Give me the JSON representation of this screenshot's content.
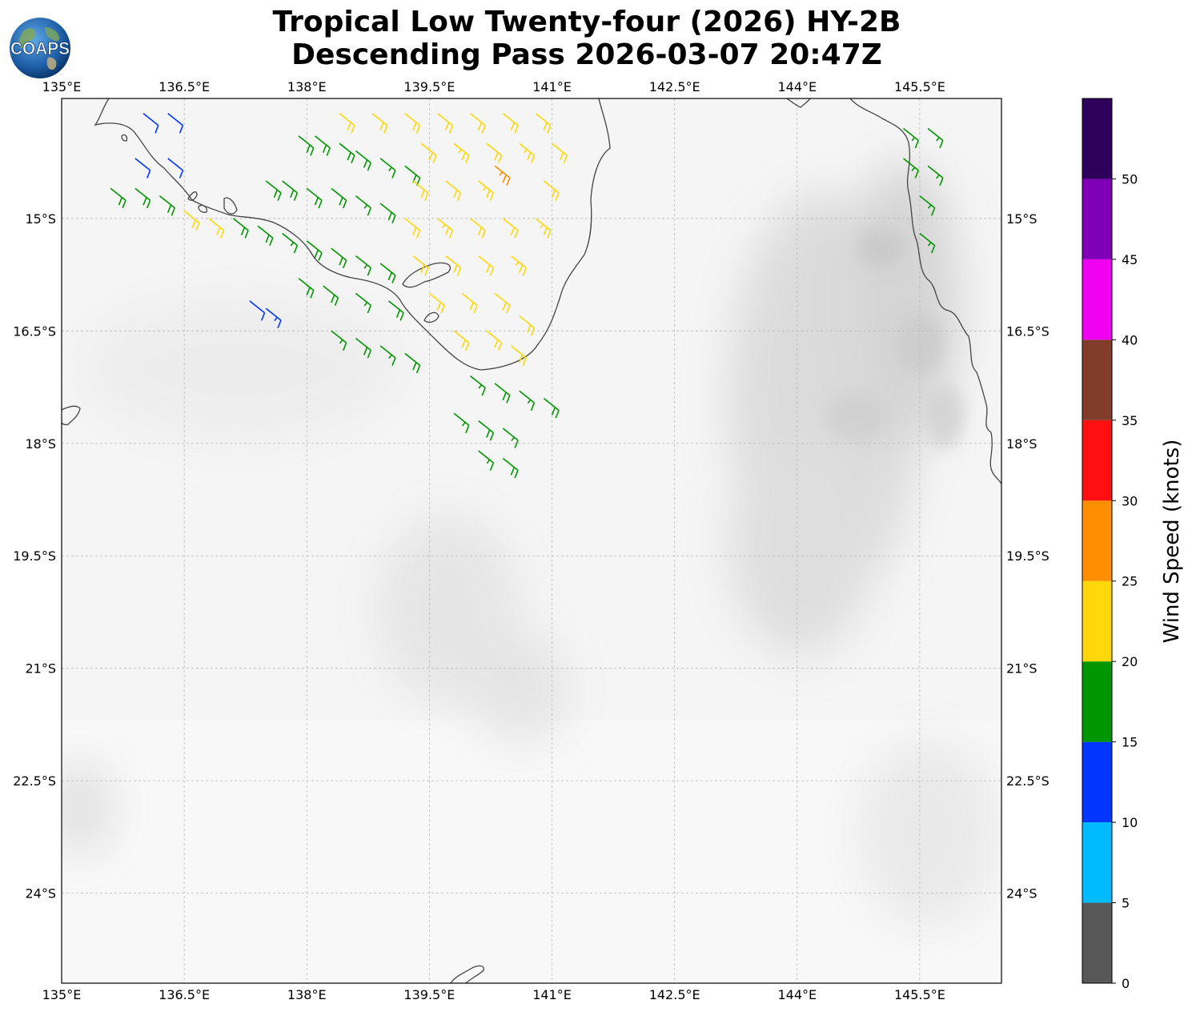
{
  "title": {
    "line1": "Tropical Low Twenty-four (2026) HY-2B",
    "line2": "Descending Pass 2026-03-07 20:47Z"
  },
  "logo": {
    "text": "COAPS",
    "icon": "globe-icon"
  },
  "map": {
    "lon_range": [
      135.0,
      146.5
    ],
    "lat_range": [
      -13.4,
      -25.2
    ],
    "lon_ticks": [
      "135°E",
      "136.5°E",
      "138°E",
      "139.5°E",
      "141°E",
      "142.5°E",
      "144°E",
      "145.5°E"
    ],
    "lat_ticks": [
      "15°S",
      "16.5°S",
      "18°S",
      "19.5°S",
      "21°S",
      "22.5°S",
      "24°S"
    ],
    "background": "grayscale satellite imagery",
    "coastline_color": "#333333",
    "gridlines": "dashed gray"
  },
  "colorbar": {
    "label": "Wind Speed (knots)",
    "ticks": [
      "0",
      "5",
      "10",
      "15",
      "20",
      "25",
      "30",
      "35",
      "40",
      "45",
      "50"
    ],
    "bins": [
      {
        "from": 0,
        "to": 5,
        "color": "#575757"
      },
      {
        "from": 5,
        "to": 10,
        "color": "#00bbff"
      },
      {
        "from": 10,
        "to": 15,
        "color": "#0036ff"
      },
      {
        "from": 15,
        "to": 20,
        "color": "#009600"
      },
      {
        "from": 20,
        "to": 25,
        "color": "#ffd70a"
      },
      {
        "from": 25,
        "to": 30,
        "color": "#ff8e00"
      },
      {
        "from": 30,
        "to": 35,
        "color": "#ff0f0f"
      },
      {
        "from": 35,
        "to": 40,
        "color": "#823d2a"
      },
      {
        "from": 40,
        "to": 45,
        "color": "#f000f0"
      },
      {
        "from": 45,
        "to": 50,
        "color": "#8000b8"
      },
      {
        "from": 50,
        "to": 55,
        "color": "#2e005c"
      }
    ]
  },
  "wind_barbs": [
    {
      "lon": 136.0,
      "lat": -13.6,
      "kt": 12
    },
    {
      "lon": 136.3,
      "lat": -13.6,
      "kt": 12
    },
    {
      "lon": 135.9,
      "lat": -14.2,
      "kt": 12
    },
    {
      "lon": 136.3,
      "lat": -14.2,
      "kt": 12
    },
    {
      "lon": 137.3,
      "lat": -16.1,
      "kt": 12
    },
    {
      "lon": 137.5,
      "lat": -16.2,
      "kt": 13
    },
    {
      "lon": 137.9,
      "lat": -13.9,
      "kt": 18
    },
    {
      "lon": 138.1,
      "lat": -13.9,
      "kt": 18
    },
    {
      "lon": 138.4,
      "lat": -14.0,
      "kt": 19
    },
    {
      "lon": 138.6,
      "lat": -14.1,
      "kt": 18
    },
    {
      "lon": 138.9,
      "lat": -14.2,
      "kt": 17
    },
    {
      "lon": 139.2,
      "lat": -14.3,
      "kt": 18
    },
    {
      "lon": 137.5,
      "lat": -14.5,
      "kt": 18
    },
    {
      "lon": 137.7,
      "lat": -14.5,
      "kt": 18
    },
    {
      "lon": 138.0,
      "lat": -14.6,
      "kt": 19
    },
    {
      "lon": 138.3,
      "lat": -14.6,
      "kt": 18
    },
    {
      "lon": 138.6,
      "lat": -14.7,
      "kt": 17
    },
    {
      "lon": 138.9,
      "lat": -14.8,
      "kt": 18
    },
    {
      "lon": 135.6,
      "lat": -14.6,
      "kt": 18
    },
    {
      "lon": 135.9,
      "lat": -14.6,
      "kt": 18
    },
    {
      "lon": 136.2,
      "lat": -14.7,
      "kt": 18
    },
    {
      "lon": 137.1,
      "lat": -15.0,
      "kt": 18
    },
    {
      "lon": 137.4,
      "lat": -15.1,
      "kt": 18
    },
    {
      "lon": 137.7,
      "lat": -15.2,
      "kt": 17
    },
    {
      "lon": 138.0,
      "lat": -15.3,
      "kt": 18
    },
    {
      "lon": 138.3,
      "lat": -15.4,
      "kt": 18
    },
    {
      "lon": 138.6,
      "lat": -15.5,
      "kt": 17
    },
    {
      "lon": 138.9,
      "lat": -15.6,
      "kt": 18
    },
    {
      "lon": 137.9,
      "lat": -15.8,
      "kt": 18
    },
    {
      "lon": 138.2,
      "lat": -15.9,
      "kt": 18
    },
    {
      "lon": 138.6,
      "lat": -16.0,
      "kt": 17
    },
    {
      "lon": 139.0,
      "lat": -16.1,
      "kt": 18
    },
    {
      "lon": 138.3,
      "lat": -16.5,
      "kt": 17
    },
    {
      "lon": 138.6,
      "lat": -16.6,
      "kt": 18
    },
    {
      "lon": 138.9,
      "lat": -16.7,
      "kt": 17
    },
    {
      "lon": 139.2,
      "lat": -16.8,
      "kt": 18
    },
    {
      "lon": 140.0,
      "lat": -17.1,
      "kt": 17
    },
    {
      "lon": 140.3,
      "lat": -17.2,
      "kt": 18
    },
    {
      "lon": 140.6,
      "lat": -17.3,
      "kt": 17
    },
    {
      "lon": 140.9,
      "lat": -17.4,
      "kt": 18
    },
    {
      "lon": 139.8,
      "lat": -17.6,
      "kt": 17
    },
    {
      "lon": 140.1,
      "lat": -17.7,
      "kt": 18
    },
    {
      "lon": 140.4,
      "lat": -17.8,
      "kt": 17
    },
    {
      "lon": 140.1,
      "lat": -18.1,
      "kt": 17
    },
    {
      "lon": 140.4,
      "lat": -18.2,
      "kt": 18
    },
    {
      "lon": 145.3,
      "lat": -13.8,
      "kt": 17
    },
    {
      "lon": 145.6,
      "lat": -13.8,
      "kt": 17
    },
    {
      "lon": 145.3,
      "lat": -14.2,
      "kt": 17
    },
    {
      "lon": 145.6,
      "lat": -14.3,
      "kt": 17
    },
    {
      "lon": 145.5,
      "lat": -14.7,
      "kt": 17
    },
    {
      "lon": 145.5,
      "lat": -15.2,
      "kt": 17
    },
    {
      "lon": 138.4,
      "lat": -13.6,
      "kt": 22
    },
    {
      "lon": 138.8,
      "lat": -13.6,
      "kt": 22
    },
    {
      "lon": 139.2,
      "lat": -13.6,
      "kt": 22
    },
    {
      "lon": 139.6,
      "lat": -13.6,
      "kt": 22
    },
    {
      "lon": 140.0,
      "lat": -13.6,
      "kt": 22
    },
    {
      "lon": 140.4,
      "lat": -13.6,
      "kt": 22
    },
    {
      "lon": 140.8,
      "lat": -13.6,
      "kt": 22
    },
    {
      "lon": 139.4,
      "lat": -14.0,
      "kt": 22
    },
    {
      "lon": 139.8,
      "lat": -14.0,
      "kt": 23
    },
    {
      "lon": 140.2,
      "lat": -14.0,
      "kt": 22
    },
    {
      "lon": 140.6,
      "lat": -14.0,
      "kt": 23
    },
    {
      "lon": 141.0,
      "lat": -14.0,
      "kt": 22
    },
    {
      "lon": 139.3,
      "lat": -14.5,
      "kt": 22
    },
    {
      "lon": 139.7,
      "lat": -14.5,
      "kt": 22
    },
    {
      "lon": 140.1,
      "lat": -14.5,
      "kt": 23
    },
    {
      "lon": 140.9,
      "lat": -14.5,
      "kt": 22
    },
    {
      "lon": 136.5,
      "lat": -14.9,
      "kt": 22
    },
    {
      "lon": 136.8,
      "lat": -15.0,
      "kt": 22
    },
    {
      "lon": 139.2,
      "lat": -15.0,
      "kt": 22
    },
    {
      "lon": 139.6,
      "lat": -15.0,
      "kt": 23
    },
    {
      "lon": 140.0,
      "lat": -15.0,
      "kt": 22
    },
    {
      "lon": 140.4,
      "lat": -15.0,
      "kt": 22
    },
    {
      "lon": 140.8,
      "lat": -15.0,
      "kt": 23
    },
    {
      "lon": 139.3,
      "lat": -15.5,
      "kt": 22
    },
    {
      "lon": 139.7,
      "lat": -15.5,
      "kt": 22
    },
    {
      "lon": 140.1,
      "lat": -15.5,
      "kt": 22
    },
    {
      "lon": 140.5,
      "lat": -15.5,
      "kt": 23
    },
    {
      "lon": 139.5,
      "lat": -16.0,
      "kt": 22
    },
    {
      "lon": 139.9,
      "lat": -16.0,
      "kt": 22
    },
    {
      "lon": 140.3,
      "lat": -16.0,
      "kt": 22
    },
    {
      "lon": 140.6,
      "lat": -16.3,
      "kt": 22
    },
    {
      "lon": 139.8,
      "lat": -16.5,
      "kt": 22
    },
    {
      "lon": 140.2,
      "lat": -16.5,
      "kt": 22
    },
    {
      "lon": 140.5,
      "lat": -16.7,
      "kt": 22
    },
    {
      "lon": 140.3,
      "lat": -14.3,
      "kt": 27
    }
  ]
}
